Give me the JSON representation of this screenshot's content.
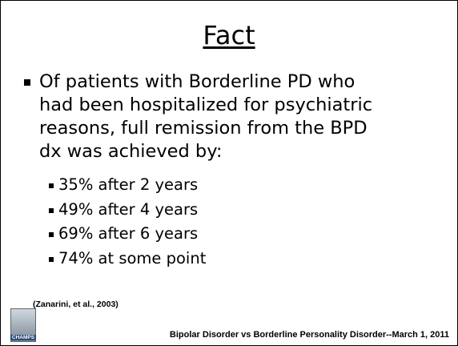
{
  "slide": {
    "title": "Fact",
    "bullet": {
      "lines": [
        "Of patients with Borderline PD who",
        "had been hospitalized for psychiatric",
        "reasons, full remission from the BPD",
        "dx was achieved by:"
      ],
      "subbullets": [
        "35% after 2 years",
        "49% after 4 years",
        "69% after 6 years",
        "74% at some point"
      ]
    },
    "citation": "(Zanarini, et al., 2003)",
    "logo_text": "CHAMPS",
    "footer": "Bipolar Disorder vs Borderline Personality Disorder--March 1, 2011"
  }
}
